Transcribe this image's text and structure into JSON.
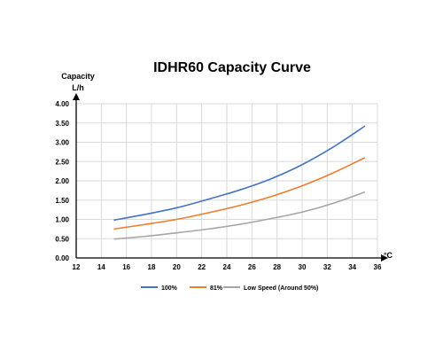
{
  "chart_data": {
    "type": "line",
    "title": "IDHR60  Capacity Curve",
    "ylabel_lines": [
      "Capacity",
      "L/h"
    ],
    "xlabel": "°C",
    "xlim": [
      12,
      36
    ],
    "ylim": [
      0,
      4
    ],
    "x_ticks": [
      12,
      14,
      16,
      18,
      20,
      22,
      24,
      26,
      28,
      30,
      32,
      34,
      36
    ],
    "y_ticks": [
      "0.00",
      "0.50",
      "1.00",
      "1.50",
      "2.00",
      "2.50",
      "3.00",
      "3.50",
      "4.00"
    ],
    "grid": true,
    "legend_position": "bottom",
    "series": [
      {
        "name": "100%",
        "color": "#4472C4",
        "x": [
          15,
          17.5,
          20,
          22.5,
          25,
          27.5,
          30,
          32.5,
          35
        ],
        "y": [
          0.98,
          1.13,
          1.3,
          1.52,
          1.76,
          2.05,
          2.42,
          2.88,
          3.42
        ]
      },
      {
        "name": "81%",
        "color": "#ED7D31",
        "x": [
          15,
          17.5,
          20,
          22.5,
          25,
          27.5,
          30,
          32.5,
          35
        ],
        "y": [
          0.75,
          0.87,
          1.0,
          1.17,
          1.36,
          1.59,
          1.87,
          2.21,
          2.6
        ]
      },
      {
        "name": "Low Speed (Around 50%)",
        "color": "#A5A5A5",
        "x": [
          15,
          17.5,
          20,
          22.5,
          25,
          27.5,
          30,
          32.5,
          35
        ],
        "y": [
          0.49,
          0.56,
          0.65,
          0.75,
          0.87,
          1.02,
          1.19,
          1.42,
          1.71
        ]
      }
    ]
  }
}
